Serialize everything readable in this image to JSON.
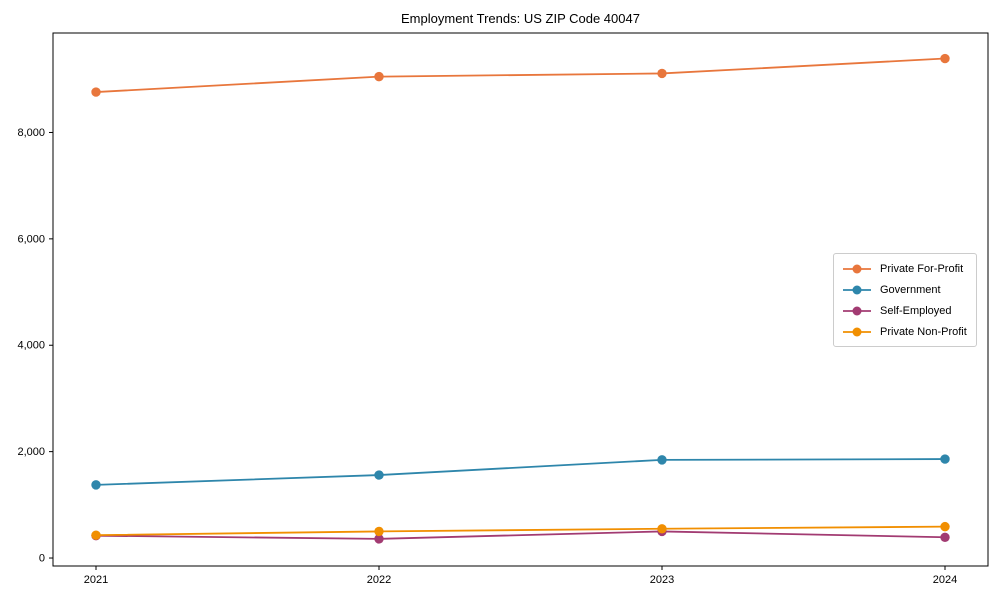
{
  "chart_data": {
    "type": "line",
    "title": "Employment Trends: US ZIP Code 40047",
    "x": [
      2021,
      2022,
      2023,
      2024
    ],
    "xtick_labels": [
      "2021",
      "2022",
      "2023",
      "2024"
    ],
    "yticks": [
      0,
      2000,
      4000,
      6000,
      8000
    ],
    "ytick_labels": [
      "0",
      "2,000",
      "4,000",
      "6,000",
      "8,000"
    ],
    "ylim": [
      -150,
      9870
    ],
    "xlabel": "",
    "ylabel": "",
    "grid": false,
    "legend_position": "center-right",
    "series": [
      {
        "name": "Private For-Profit",
        "color": "#E8763C",
        "values": [
          8760,
          9050,
          9110,
          9390
        ]
      },
      {
        "name": "Government",
        "color": "#2E86AB",
        "values": [
          1375,
          1560,
          1845,
          1860
        ]
      },
      {
        "name": "Self-Employed",
        "color": "#A23B72",
        "values": [
          420,
          360,
          500,
          390
        ]
      },
      {
        "name": "Private Non-Profit",
        "color": "#F18F01",
        "values": [
          430,
          500,
          550,
          590
        ]
      }
    ]
  }
}
